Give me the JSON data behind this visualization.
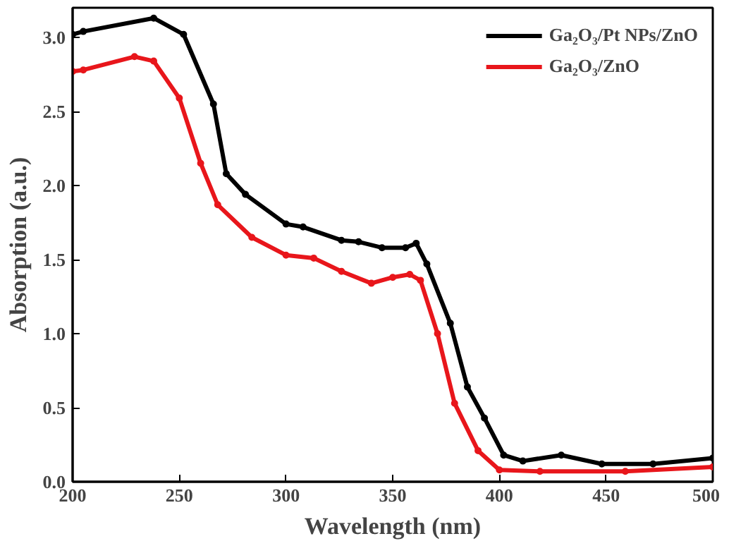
{
  "chart_data": {
    "type": "line",
    "xlabel": "Wavelength (nm)",
    "ylabel": "Absorption (a.u.)",
    "xlim": [
      200,
      500
    ],
    "ylim": [
      0,
      3.2
    ],
    "xticks": [
      200,
      250,
      300,
      350,
      400,
      450,
      500
    ],
    "yticks": [
      {
        "value": 0,
        "label": "0.0"
      },
      {
        "value": 0.5,
        "label": "0.5"
      },
      {
        "value": 1,
        "label": "1.0"
      },
      {
        "value": 1.5,
        "label": "1.5"
      },
      {
        "value": 2,
        "label": "2.0"
      },
      {
        "value": 2.5,
        "label": "2.5"
      },
      {
        "value": 3,
        "label": "3.0"
      }
    ],
    "grid": false,
    "legend": "top right",
    "marker": "circle",
    "line_style": "solid",
    "series": [
      {
        "name": "Ga₂O₃/Pt NPs/ZnO",
        "color": "#000000",
        "x": [
          200,
          205,
          238,
          252,
          266,
          272,
          281,
          300,
          308,
          326,
          334,
          345,
          356,
          361,
          366,
          377,
          385,
          393,
          402,
          411,
          429,
          448,
          472,
          500
        ],
        "values": [
          3.02,
          3.04,
          3.13,
          3.02,
          2.55,
          2.08,
          1.94,
          1.74,
          1.72,
          1.63,
          1.62,
          1.58,
          1.58,
          1.61,
          1.47,
          1.07,
          0.64,
          0.43,
          0.18,
          0.14,
          0.18,
          0.12,
          0.12,
          0.16
        ]
      },
      {
        "name": "Ga₂O₃/ZnO",
        "color": "#e8161b",
        "x": [
          200,
          205,
          229,
          238,
          250,
          260,
          268,
          284,
          300,
          313,
          326,
          340,
          350,
          358,
          363,
          371,
          379,
          390,
          400,
          419,
          459,
          500
        ],
        "values": [
          2.77,
          2.78,
          2.87,
          2.84,
          2.59,
          2.15,
          1.87,
          1.65,
          1.53,
          1.51,
          1.42,
          1.34,
          1.38,
          1.4,
          1.36,
          1.0,
          0.53,
          0.21,
          0.08,
          0.07,
          0.07,
          0.1
        ]
      }
    ]
  }
}
